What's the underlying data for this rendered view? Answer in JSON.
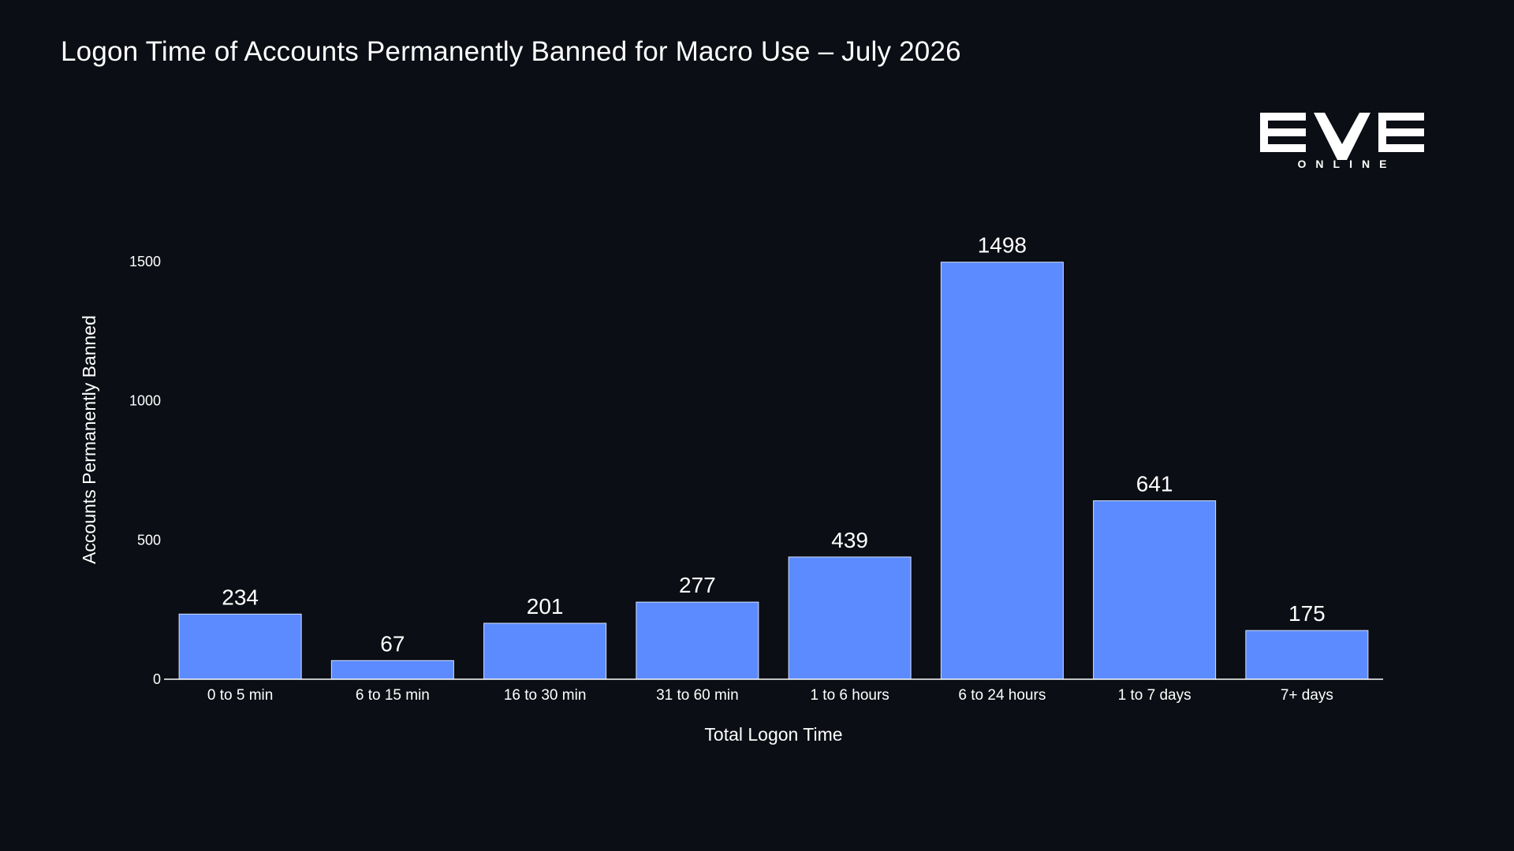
{
  "title": "Logon Time of Accounts Permanently Banned for Macro Use – July 2026",
  "logo": {
    "main": "EVE",
    "sub": "ONLINE"
  },
  "colors": {
    "background": "#0b0e14",
    "bar": "#5b8bff",
    "bar_edge": "#d6e0ff",
    "text": "#ffffff"
  },
  "chart_data": {
    "type": "bar",
    "title": "Logon Time of Accounts Permanently Banned for Macro Use – July 2026",
    "xlabel": "Total Logon Time",
    "ylabel": "Accounts Permanently Banned",
    "categories": [
      "0 to 5 min",
      "6 to 15 min",
      "16 to 30 min",
      "31 to 60 min",
      "1 to 6 hours",
      "6 to 24 hours",
      "1 to 7 days",
      "7+ days"
    ],
    "values": [
      234,
      67,
      201,
      277,
      439,
      1498,
      641,
      175
    ],
    "value_labels": [
      "234",
      "67",
      "201",
      "277",
      "439",
      "1498",
      "641",
      "175"
    ],
    "yticks": [
      0,
      500,
      1000,
      1500
    ],
    "ytick_labels": [
      "0",
      "500",
      "1000",
      "1500"
    ],
    "ylim": [
      0,
      1500
    ],
    "grid": false,
    "legend": "none"
  }
}
